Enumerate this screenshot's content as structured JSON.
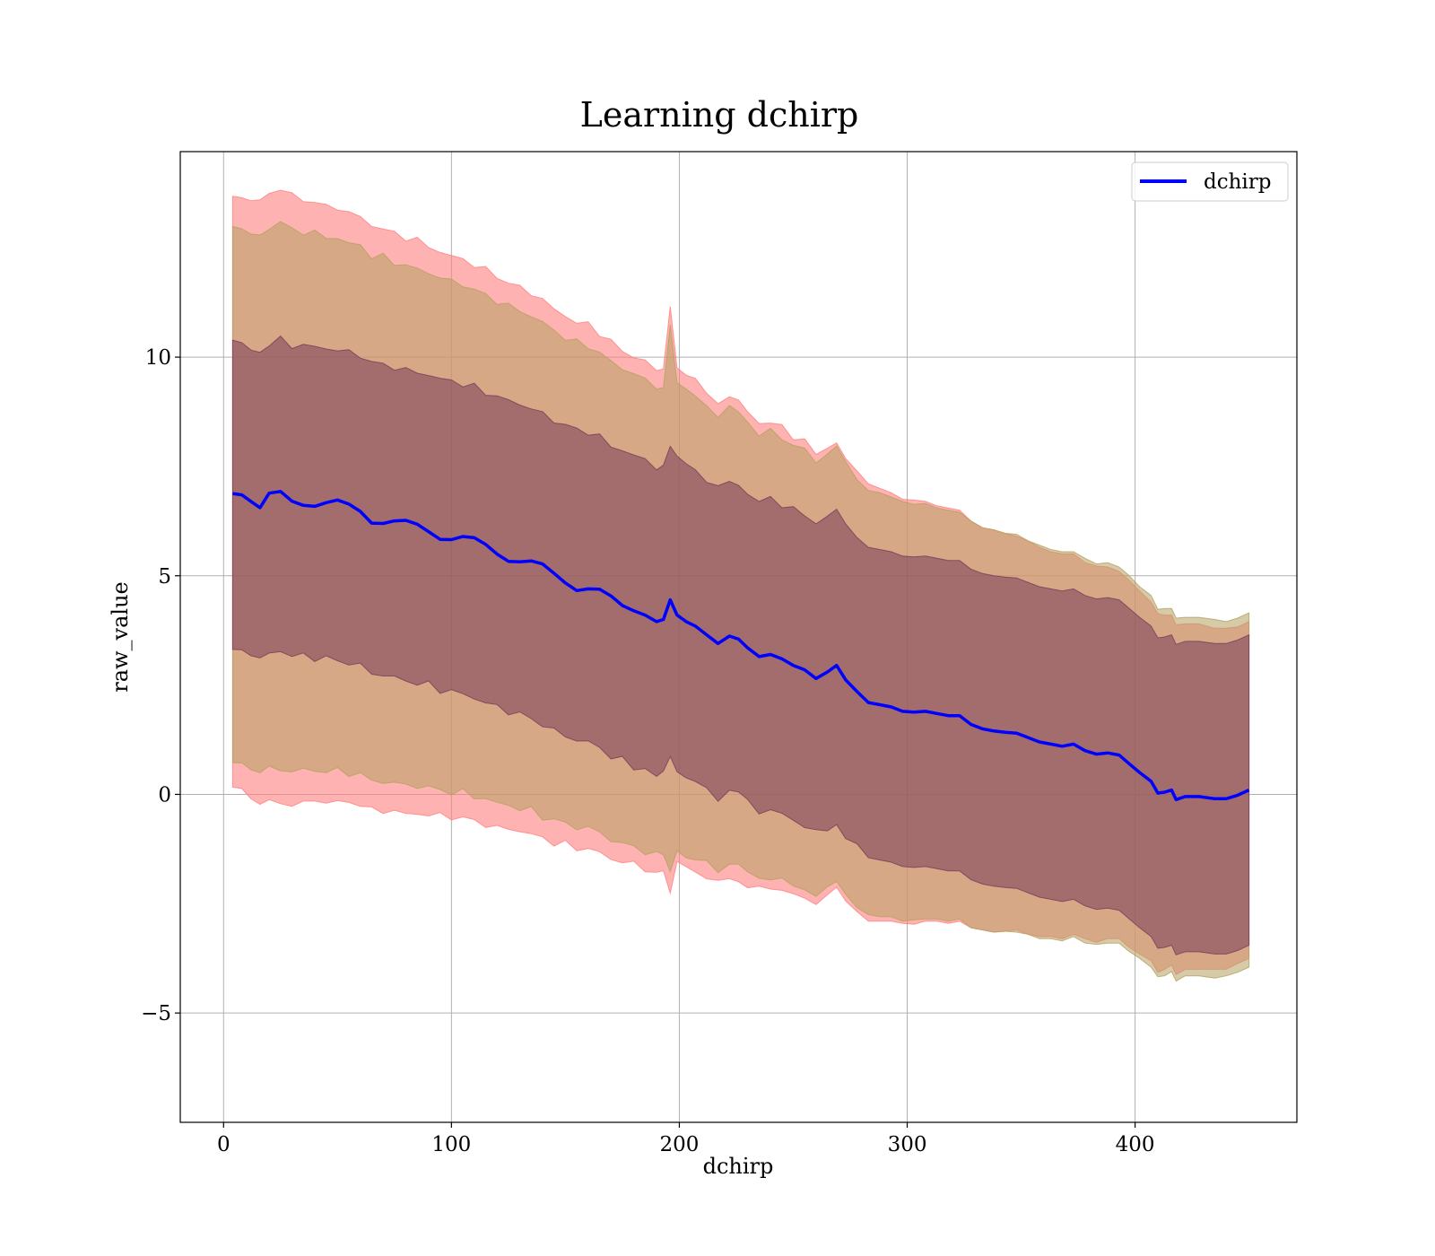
{
  "chart_data": {
    "type": "line",
    "title": "Learning dchirp",
    "xlabel": "dchirp",
    "ylabel": "raw_value",
    "xlim": [
      -19,
      471
    ],
    "ylim": [
      -7.5,
      14.7
    ],
    "xticks": [
      0,
      100,
      200,
      300,
      400
    ],
    "yticks": [
      -5,
      0,
      5,
      10
    ],
    "xtick_labels": [
      "0",
      "100",
      "200",
      "300",
      "400"
    ],
    "ytick_labels": [
      "−5",
      "0",
      "5",
      "10"
    ],
    "grid": true,
    "legend": {
      "position": "top-right",
      "entries": [
        "dchirp"
      ]
    },
    "colors": {
      "line": "#0000ff",
      "outer_band": "#ff7f7f",
      "middle_band": "#b5a060",
      "inner_band": "#7a3a5a",
      "grid": "#b0b0b0"
    },
    "series": [
      {
        "name": "dchirp",
        "x": [
          4,
          8,
          12,
          16,
          20,
          25,
          30,
          35,
          40,
          45,
          50,
          55,
          60,
          65,
          70,
          75,
          80,
          85,
          90,
          95,
          100,
          105,
          110,
          115,
          120,
          125,
          130,
          135,
          140,
          145,
          150,
          155,
          160,
          165,
          170,
          175,
          180,
          185,
          190,
          193,
          196,
          199,
          203,
          207,
          212,
          217,
          222,
          226,
          230,
          235,
          240,
          245,
          250,
          255,
          260,
          265,
          269,
          273,
          278,
          283,
          288,
          293,
          298,
          303,
          308,
          313,
          318,
          323,
          328,
          333,
          338,
          343,
          348,
          353,
          358,
          363,
          368,
          373,
          378,
          383,
          388,
          393,
          397,
          402,
          407,
          410,
          413,
          416,
          418,
          422,
          428,
          435,
          440,
          445,
          450
        ],
        "y": [
          6.88,
          6.85,
          6.7,
          6.65,
          6.78,
          6.83,
          6.72,
          6.72,
          6.68,
          6.65,
          6.62,
          6.55,
          6.5,
          6.32,
          6.28,
          6.22,
          6.15,
          6.1,
          6.05,
          5.95,
          5.9,
          5.85,
          5.75,
          5.65,
          5.55,
          5.45,
          5.38,
          5.28,
          5.15,
          5.0,
          4.9,
          4.78,
          4.75,
          4.62,
          4.42,
          4.32,
          4.2,
          4.1,
          3.95,
          4.0,
          4.45,
          4.1,
          3.95,
          3.85,
          3.65,
          3.45,
          3.62,
          3.55,
          3.35,
          3.15,
          3.2,
          3.1,
          2.95,
          2.85,
          2.65,
          2.8,
          2.95,
          2.62,
          2.35,
          2.1,
          2.05,
          2.0,
          1.9,
          1.88,
          1.9,
          1.85,
          1.8,
          1.8,
          1.6,
          1.5,
          1.45,
          1.42,
          1.4,
          1.3,
          1.2,
          1.15,
          1.1,
          1.15,
          1.0,
          0.92,
          0.95,
          0.9,
          0.72,
          0.5,
          0.3,
          0.03,
          0.05,
          0.1,
          -0.12,
          -0.05,
          -0.05,
          -0.1,
          -0.1,
          -0.02,
          0.1
        ]
      }
    ],
    "bands": [
      {
        "name": "outer",
        "upper_offset": [
          6.7,
          6.7,
          6.8,
          6.9,
          6.95,
          7.05,
          6.95,
          6.9,
          6.85,
          6.8,
          6.8,
          6.75,
          6.7,
          6.7,
          6.65,
          6.6,
          6.6,
          6.55,
          6.5,
          6.45,
          6.4,
          6.4,
          6.35,
          6.35,
          6.3,
          6.25,
          6.2,
          6.2,
          6.15,
          6.1,
          6.05,
          6.0,
          6.0,
          5.95,
          5.9,
          5.85,
          5.8,
          5.8,
          5.75,
          5.7,
          6.65,
          5.65,
          5.6,
          5.6,
          5.55,
          5.5,
          5.45,
          5.45,
          5.4,
          5.35,
          5.3,
          5.3,
          5.25,
          5.2,
          5.15,
          5.15,
          5.1,
          5.05,
          5.0,
          5.0,
          4.95,
          4.9,
          4.85,
          4.85,
          4.8,
          4.75,
          4.75,
          4.7,
          4.65,
          4.6,
          4.6,
          4.55,
          4.5,
          4.5,
          4.45,
          4.4,
          4.4,
          4.35,
          4.3,
          4.3,
          4.25,
          4.2,
          4.2,
          4.15,
          4.1,
          4.1,
          4.05,
          4.0,
          4.0,
          3.95,
          3.95,
          3.9,
          3.9,
          3.85,
          3.85
        ],
        "lower_offset": [
          6.7,
          6.7,
          6.8,
          6.9,
          6.95,
          7.05,
          6.95,
          6.9,
          6.85,
          6.8,
          6.8,
          6.75,
          6.7,
          6.7,
          6.65,
          6.6,
          6.6,
          6.55,
          6.5,
          6.45,
          6.4,
          6.4,
          6.35,
          6.35,
          6.3,
          6.25,
          6.2,
          6.2,
          6.15,
          6.1,
          6.05,
          6.0,
          6.0,
          5.95,
          5.9,
          5.85,
          5.8,
          5.8,
          5.75,
          5.7,
          6.65,
          5.65,
          5.6,
          5.6,
          5.55,
          5.5,
          5.45,
          5.45,
          5.4,
          5.35,
          5.3,
          5.3,
          5.25,
          5.2,
          5.15,
          5.15,
          5.1,
          5.05,
          5.0,
          5.0,
          4.95,
          4.9,
          4.85,
          4.85,
          4.8,
          4.75,
          4.75,
          4.7,
          4.65,
          4.6,
          4.6,
          4.55,
          4.5,
          4.5,
          4.45,
          4.4,
          4.4,
          4.35,
          4.3,
          4.3,
          4.25,
          4.2,
          4.2,
          4.15,
          4.1,
          4.1,
          4.05,
          4.0,
          4.0,
          3.95,
          3.95,
          3.9,
          3.9,
          3.85,
          3.85
        ]
      },
      {
        "name": "middle",
        "upper_offset": [
          6.1,
          6.1,
          6.15,
          6.2,
          6.2,
          6.25,
          6.2,
          6.15,
          6.15,
          6.1,
          6.1,
          6.05,
          6.05,
          6.0,
          6.0,
          5.95,
          5.95,
          5.9,
          5.9,
          5.85,
          5.85,
          5.8,
          5.8,
          5.75,
          5.75,
          5.7,
          5.7,
          5.65,
          5.65,
          5.6,
          5.55,
          5.55,
          5.5,
          5.5,
          5.45,
          5.45,
          5.4,
          5.4,
          5.35,
          5.35,
          6.2,
          5.3,
          5.3,
          5.25,
          5.25,
          5.2,
          5.2,
          5.15,
          5.15,
          5.1,
          5.1,
          5.05,
          5.05,
          5.0,
          5.0,
          4.95,
          4.95,
          4.9,
          4.9,
          4.85,
          4.85,
          4.8,
          4.8,
          4.75,
          4.75,
          4.7,
          4.7,
          4.65,
          4.65,
          4.6,
          4.6,
          4.55,
          4.55,
          4.5,
          4.5,
          4.45,
          4.45,
          4.4,
          4.4,
          4.35,
          4.35,
          4.3,
          4.3,
          4.25,
          4.25,
          4.2,
          4.2,
          4.15,
          4.15,
          4.1,
          4.1,
          4.1,
          4.05,
          4.05,
          4.05
        ],
        "lower_offset": [
          6.1,
          6.1,
          6.15,
          6.2,
          6.2,
          6.25,
          6.2,
          6.15,
          6.15,
          6.1,
          6.1,
          6.05,
          6.05,
          6.0,
          6.0,
          5.95,
          5.95,
          5.9,
          5.9,
          5.85,
          5.85,
          5.8,
          5.8,
          5.75,
          5.75,
          5.7,
          5.7,
          5.65,
          5.65,
          5.6,
          5.55,
          5.55,
          5.5,
          5.5,
          5.45,
          5.45,
          5.4,
          5.4,
          5.35,
          5.35,
          6.2,
          5.3,
          5.3,
          5.25,
          5.25,
          5.2,
          5.2,
          5.15,
          5.15,
          5.1,
          5.1,
          5.05,
          5.05,
          5.0,
          5.0,
          4.95,
          4.95,
          4.9,
          4.9,
          4.85,
          4.85,
          4.8,
          4.8,
          4.75,
          4.75,
          4.7,
          4.7,
          4.65,
          4.65,
          4.6,
          4.6,
          4.55,
          4.55,
          4.5,
          4.5,
          4.45,
          4.45,
          4.4,
          4.4,
          4.35,
          4.35,
          4.3,
          4.3,
          4.25,
          4.25,
          4.2,
          4.2,
          4.15,
          4.15,
          4.1,
          4.1,
          4.1,
          4.05,
          4.05,
          4.05
        ]
      },
      {
        "name": "inner",
        "upper_offset": [
          3.55,
          3.55,
          3.55,
          3.55,
          3.55,
          3.55,
          3.55,
          3.55,
          3.55,
          3.55,
          3.55,
          3.55,
          3.55,
          3.55,
          3.55,
          3.55,
          3.55,
          3.55,
          3.55,
          3.55,
          3.55,
          3.55,
          3.55,
          3.55,
          3.55,
          3.55,
          3.55,
          3.55,
          3.55,
          3.55,
          3.55,
          3.55,
          3.55,
          3.55,
          3.55,
          3.55,
          3.55,
          3.55,
          3.55,
          3.55,
          3.55,
          3.55,
          3.55,
          3.55,
          3.55,
          3.55,
          3.55,
          3.55,
          3.55,
          3.55,
          3.55,
          3.55,
          3.55,
          3.55,
          3.55,
          3.55,
          3.55,
          3.55,
          3.55,
          3.55,
          3.55,
          3.55,
          3.55,
          3.55,
          3.55,
          3.55,
          3.55,
          3.55,
          3.55,
          3.55,
          3.55,
          3.55,
          3.55,
          3.55,
          3.55,
          3.55,
          3.55,
          3.55,
          3.55,
          3.55,
          3.55,
          3.55,
          3.55,
          3.55,
          3.55,
          3.55,
          3.55,
          3.55,
          3.55,
          3.55,
          3.55,
          3.55,
          3.55,
          3.55,
          3.55
        ],
        "lower_offset": [
          3.55,
          3.55,
          3.55,
          3.55,
          3.55,
          3.55,
          3.55,
          3.55,
          3.55,
          3.55,
          3.55,
          3.55,
          3.55,
          3.55,
          3.55,
          3.55,
          3.55,
          3.55,
          3.55,
          3.55,
          3.55,
          3.55,
          3.55,
          3.55,
          3.55,
          3.55,
          3.55,
          3.55,
          3.55,
          3.55,
          3.55,
          3.55,
          3.55,
          3.55,
          3.55,
          3.55,
          3.55,
          3.55,
          3.55,
          3.55,
          3.55,
          3.55,
          3.55,
          3.55,
          3.55,
          3.55,
          3.55,
          3.55,
          3.55,
          3.55,
          3.55,
          3.55,
          3.55,
          3.55,
          3.55,
          3.55,
          3.55,
          3.55,
          3.55,
          3.55,
          3.55,
          3.55,
          3.55,
          3.55,
          3.55,
          3.55,
          3.55,
          3.55,
          3.55,
          3.55,
          3.55,
          3.55,
          3.55,
          3.55,
          3.55,
          3.55,
          3.55,
          3.55,
          3.55,
          3.55,
          3.55,
          3.55,
          3.55,
          3.55,
          3.55,
          3.55,
          3.55,
          3.55,
          3.55,
          3.55,
          3.55,
          3.55,
          3.55,
          3.55,
          3.55
        ]
      }
    ]
  }
}
